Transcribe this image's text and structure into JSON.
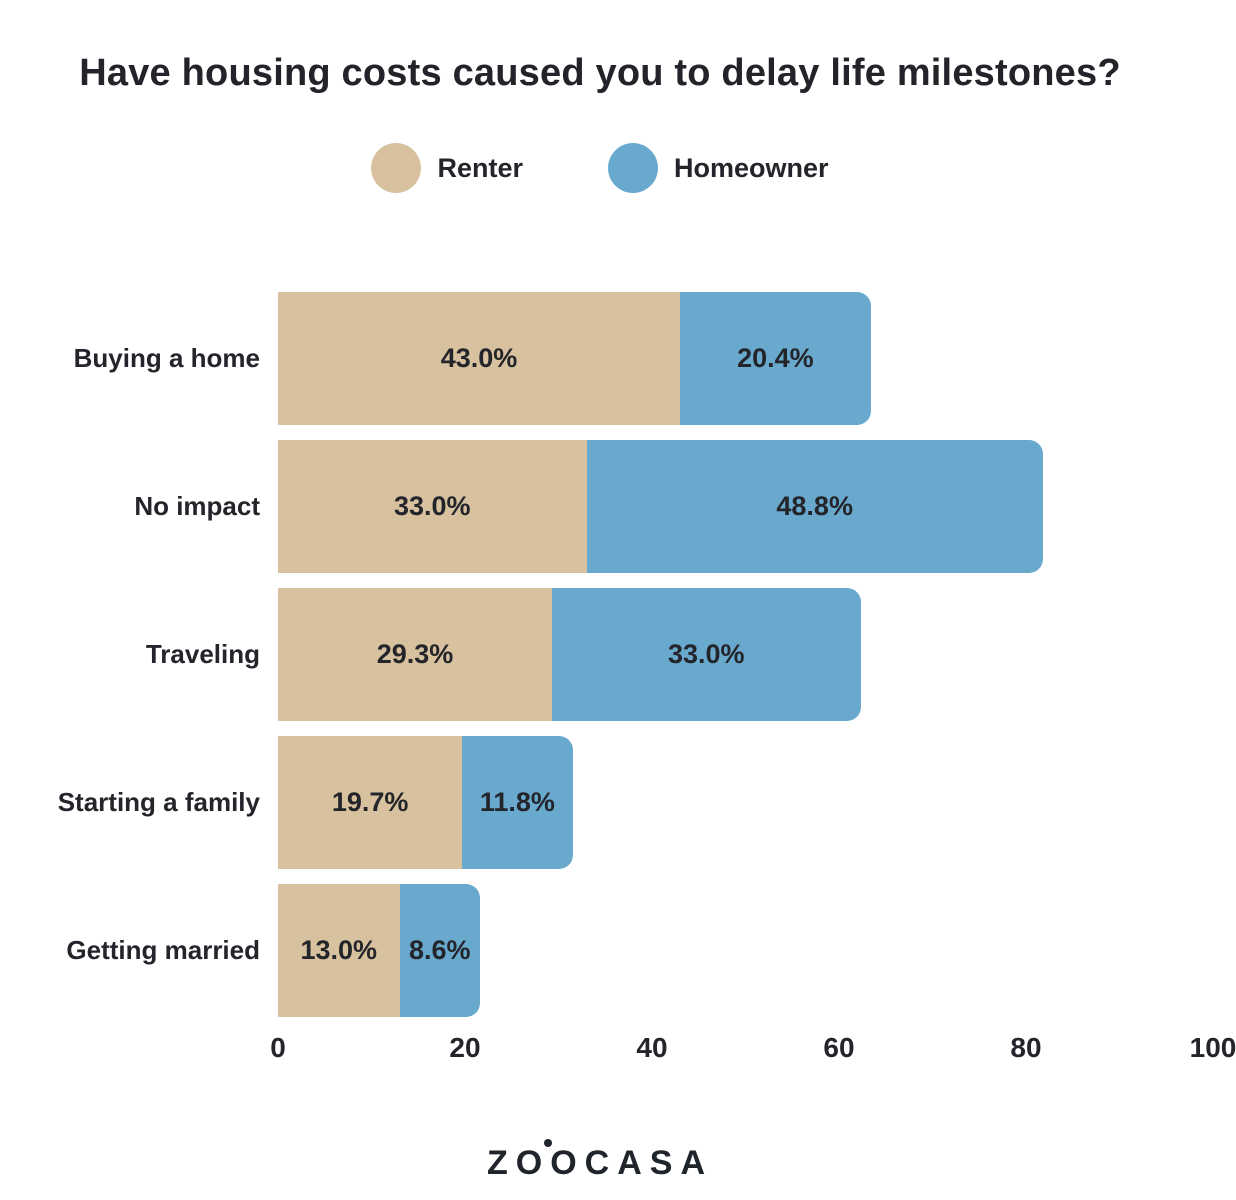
{
  "title": "Have housing costs caused you to delay life milestones?",
  "legend": [
    {
      "label": "Renter",
      "color": "#d7c19e"
    },
    {
      "label": "Homeowner",
      "color": "#69a9ce"
    }
  ],
  "footer": {
    "logo_text": "ZOOCASA"
  },
  "colors": {
    "renter": "#d7c19e",
    "homeowner": "#69a9ce",
    "text": "#23252b",
    "background": "#ffffff"
  },
  "chart_data": {
    "type": "bar",
    "orientation": "horizontal",
    "stacked": true,
    "title": "Have housing costs caused you to delay life milestones?",
    "categories": [
      "Buying a home",
      "No impact",
      "Traveling",
      "Starting a family",
      "Getting married"
    ],
    "series": [
      {
        "name": "Renter",
        "color": "#d7c19e",
        "values": [
          43.0,
          33.0,
          29.3,
          19.7,
          13.0
        ],
        "labels": [
          "43.0%",
          "33.0%",
          "29.3%",
          "19.7%",
          "13.0%"
        ]
      },
      {
        "name": "Homeowner",
        "color": "#69a9ce",
        "values": [
          20.4,
          48.8,
          33.0,
          11.8,
          8.6
        ],
        "labels": [
          "20.4%",
          "48.8%",
          "33.0%",
          "11.8%",
          "8.6%"
        ]
      }
    ],
    "xlabel": "",
    "ylabel": "",
    "xlim": [
      0,
      100
    ],
    "x_ticks": [
      0,
      20,
      40,
      60,
      80,
      100
    ],
    "grid": false,
    "legend_position": "top",
    "value_labels": "inside"
  }
}
